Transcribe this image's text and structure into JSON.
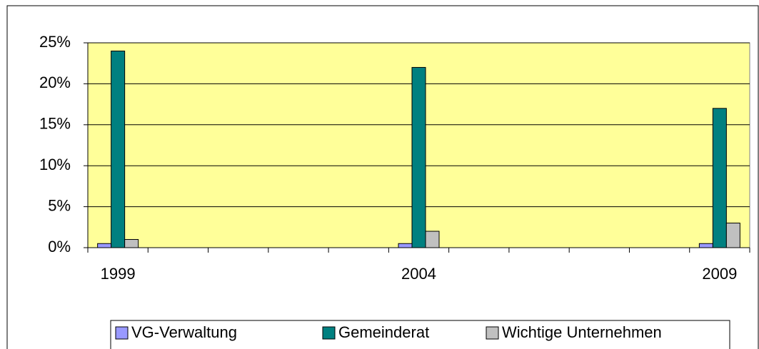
{
  "chart_data": {
    "type": "bar",
    "categories": [
      "1999",
      null,
      null,
      null,
      null,
      "2004",
      null,
      null,
      null,
      null,
      "2009"
    ],
    "series": [
      {
        "name": "VG-Verwaltung",
        "color": "#9999ff",
        "values": [
          0.5,
          null,
          null,
          null,
          null,
          0.5,
          null,
          null,
          null,
          null,
          0.5
        ]
      },
      {
        "name": "Gemeinderat",
        "color": "#008080",
        "values": [
          24,
          null,
          null,
          null,
          null,
          22,
          null,
          null,
          null,
          null,
          17
        ]
      },
      {
        "name": "Wichtige Unternehmen",
        "color": "#c0c0c0",
        "values": [
          1,
          null,
          null,
          null,
          null,
          2,
          null,
          null,
          null,
          null,
          3
        ]
      }
    ],
    "ylim": [
      0,
      25
    ],
    "yticks": [
      {
        "value": 0,
        "label": "0%"
      },
      {
        "value": 5,
        "label": "5%"
      },
      {
        "value": 10,
        "label": "10%"
      },
      {
        "value": 15,
        "label": "15%"
      },
      {
        "value": 20,
        "label": "20%"
      },
      {
        "value": 25,
        "label": "25%"
      }
    ],
    "grid": true,
    "plot_background": "#ffff99",
    "legend": "bottom"
  }
}
